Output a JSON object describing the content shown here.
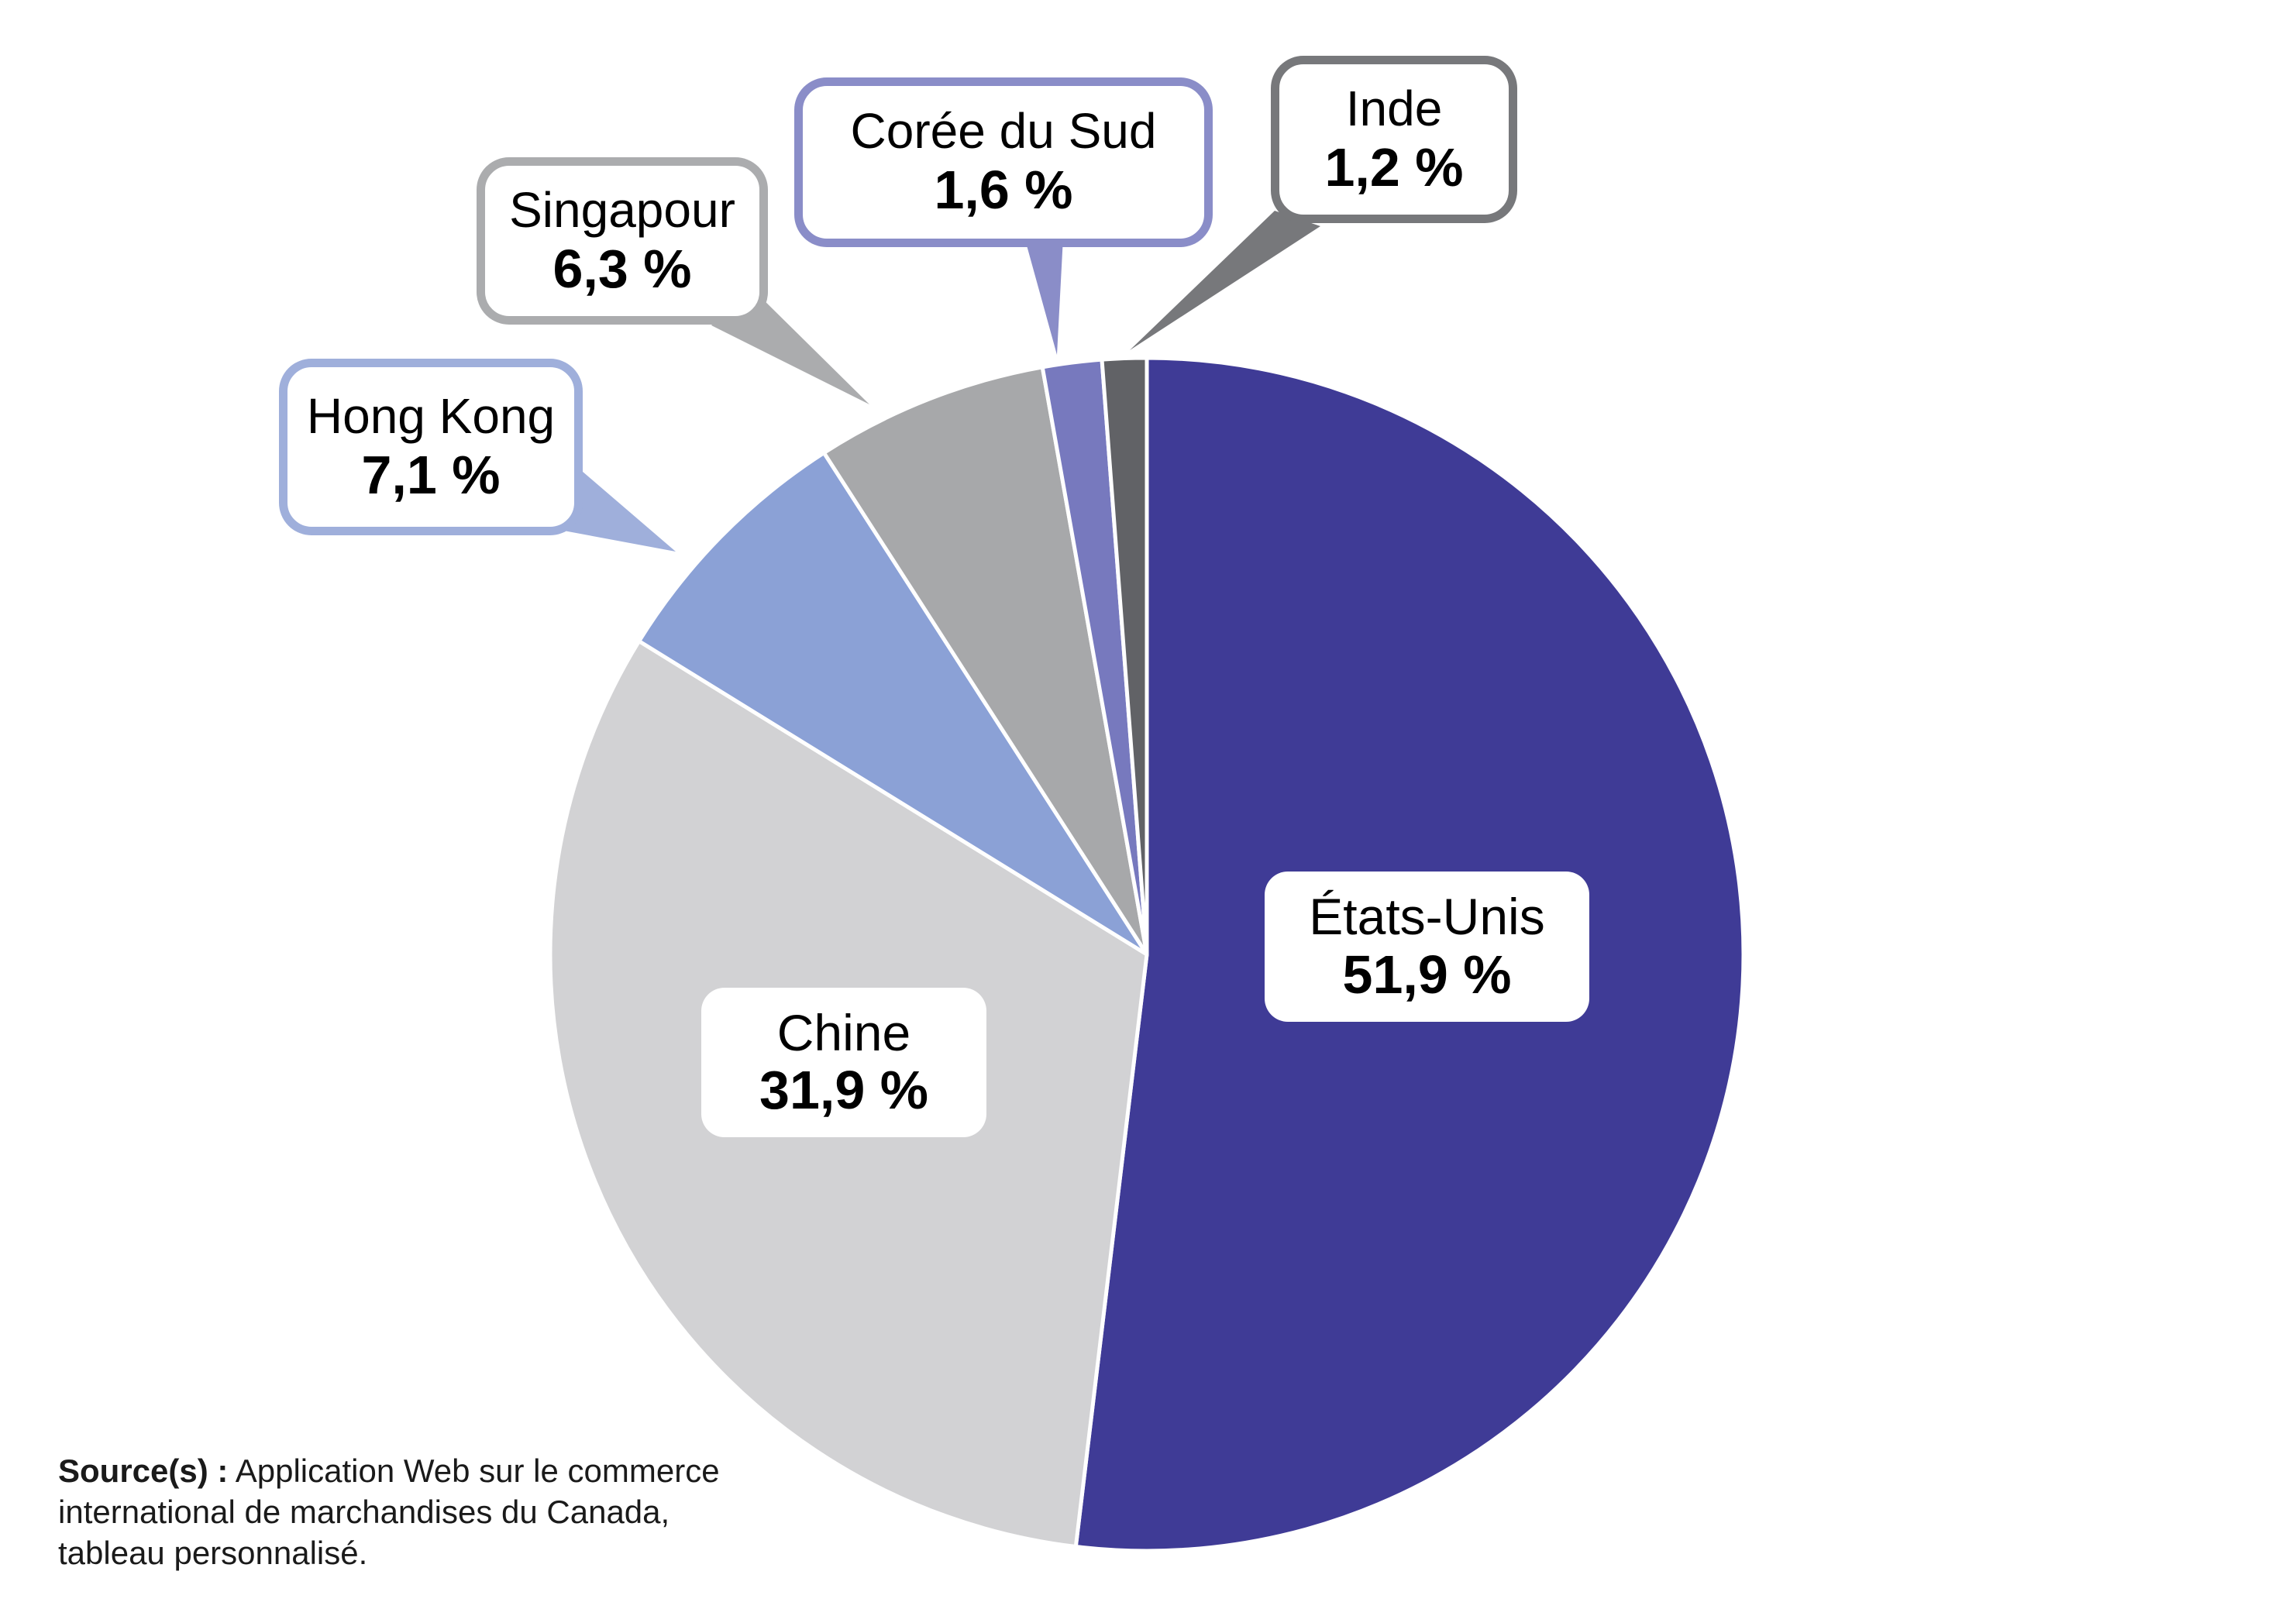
{
  "chart_data": {
    "type": "pie",
    "units": "%",
    "decimal_style": "comma",
    "direction": "clockwise",
    "start_angle_deg": 0,
    "legend": "none",
    "label_style": "callout-boxes",
    "series": [
      {
        "name": "États-Unis",
        "value": 51.9,
        "display": "51,9 %",
        "color": "#3F3B96",
        "accent": "#3F3B96"
      },
      {
        "name": "Chine",
        "value": 31.9,
        "display": "31,9 %",
        "color": "#D2D2D4",
        "accent": "#D2D2D4"
      },
      {
        "name": "Hong Kong",
        "value": 7.1,
        "display": "7,1 %",
        "color": "#8BA1D6",
        "accent": "#9FAFDB"
      },
      {
        "name": "Singapour",
        "value": 6.3,
        "display": "6,3 %",
        "color": "#A7A8AA",
        "accent": "#ABACAE"
      },
      {
        "name": "Corée du Sud",
        "value": 1.6,
        "display": "1,6 %",
        "color": "#7779BE",
        "accent": "#8A8DC8"
      },
      {
        "name": "Inde",
        "value": 1.2,
        "display": "1,2 %",
        "color": "#616266",
        "accent": "#77787B"
      }
    ]
  },
  "source": {
    "label": "Source(s) :",
    "lines": [
      "Application Web sur le commerce",
      "international de marchandises du Canada,",
      "tableau personnalisé."
    ]
  }
}
